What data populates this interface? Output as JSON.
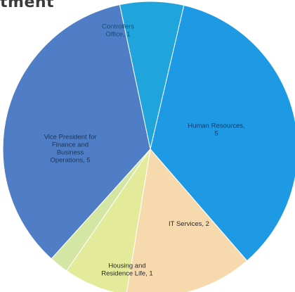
{
  "chart_data": {
    "type": "pie",
    "title": "tment",
    "slices": [
      {
        "label": "Controllers Office, 1",
        "lines": [
          "Controllers",
          "Office, 1"
        ],
        "category": "Controllers Office",
        "value": 1,
        "color": "#1fa5dc",
        "text_color": "#15507a"
      },
      {
        "label": "Human Resources, 5",
        "lines": [
          "Human Resources,",
          "5"
        ],
        "category": "Human Resources",
        "value": 5,
        "color": "#1d9ae3",
        "text_color": "#0d3a6e"
      },
      {
        "label": "IT Services, 2",
        "lines": [
          "IT Services, 2"
        ],
        "category": "IT Services",
        "value": 2,
        "color": "#f7d9ae",
        "text_color": "#2a2a2a"
      },
      {
        "label": "Housing and Residence Life, 1",
        "lines": [
          "Housing and",
          "Residence Life, 1"
        ],
        "category": "Housing and Residence Life",
        "value": 1,
        "color": "#e3eb9a",
        "text_color": "#2a2a2a"
      },
      {
        "label": "",
        "lines": [],
        "category": "",
        "value": 0.3,
        "color": "#d4e6a4",
        "text_color": "#2a2a2a"
      },
      {
        "label": "Vice President for Finance and Business Operations, 5",
        "lines": [
          "Vice President for",
          "Finance and",
          "Business",
          "Operations, 5"
        ],
        "category": "Vice President for Finance and Business Operations",
        "value": 5,
        "color": "#4f7ec6",
        "text_color": "#1e3556"
      }
    ]
  }
}
